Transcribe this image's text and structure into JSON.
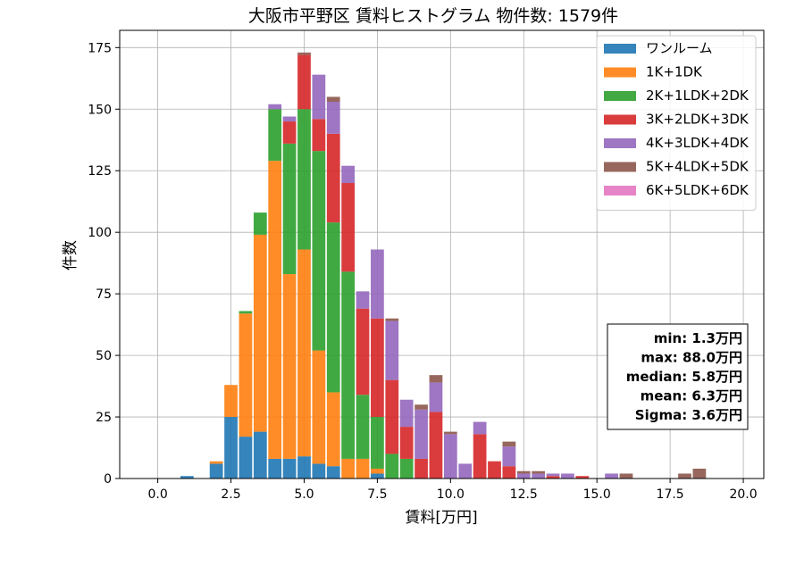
{
  "chart_data": {
    "type": "bar",
    "stacked": true,
    "title": "大阪市平野区 賃料ヒストグラム 物件数: 1579件",
    "xlabel": "賃料[万円]",
    "ylabel": "件数",
    "xlim": [
      -1.3,
      20.7
    ],
    "ylim": [
      0,
      182
    ],
    "bin_width": 0.5,
    "xticks": [
      0.0,
      2.5,
      5.0,
      7.5,
      10.0,
      12.5,
      15.0,
      17.5,
      20.0
    ],
    "xtick_labels": [
      "0.0",
      "2.5",
      "5.0",
      "7.5",
      "10.0",
      "12.5",
      "15.0",
      "17.5",
      "20.0"
    ],
    "yticks": [
      0,
      25,
      50,
      75,
      100,
      125,
      150,
      175
    ],
    "ytick_labels": [
      "0",
      "25",
      "50",
      "75",
      "100",
      "125",
      "150",
      "175"
    ],
    "grid": true,
    "legend_position": "top-right",
    "x": [
      1.0,
      2.0,
      2.5,
      3.0,
      3.5,
      4.0,
      4.5,
      5.0,
      5.5,
      6.0,
      6.5,
      7.0,
      7.5,
      8.0,
      8.5,
      9.0,
      9.5,
      10.0,
      10.5,
      11.0,
      11.5,
      12.0,
      12.5,
      13.0,
      13.5,
      14.0,
      14.5,
      15.5,
      16.0,
      18.0,
      18.5
    ],
    "series": [
      {
        "name": "ワンルーム",
        "color": "#1f77b4",
        "values": [
          1,
          6,
          25,
          17,
          19,
          8,
          8,
          9,
          6,
          5,
          0,
          0,
          2,
          0,
          0,
          0,
          0,
          0,
          0,
          0,
          0,
          0,
          0,
          0,
          0,
          0,
          0,
          0,
          0,
          0,
          0
        ]
      },
      {
        "name": "1K+1DK",
        "color": "#ff7f0e",
        "values": [
          0,
          1,
          13,
          50,
          80,
          121,
          75,
          84,
          46,
          30,
          8,
          8,
          2,
          0,
          0,
          0,
          0,
          0,
          0,
          0,
          0,
          0,
          0,
          0,
          0,
          0,
          0,
          0,
          0,
          0,
          0
        ]
      },
      {
        "name": "2K+1LDK+2DK",
        "color": "#2ca02c",
        "values": [
          0,
          0,
          0,
          1,
          9,
          21,
          53,
          57,
          81,
          69,
          76,
          26,
          21,
          10,
          8,
          0,
          0,
          0,
          0,
          0,
          0,
          0,
          0,
          0,
          0,
          0,
          0,
          0,
          0,
          0,
          0
        ]
      },
      {
        "name": "3K+2LDK+3DK",
        "color": "#d62728",
        "values": [
          0,
          0,
          0,
          0,
          0,
          0,
          9,
          22,
          13,
          36,
          36,
          35,
          40,
          30,
          13,
          8,
          27,
          0,
          0,
          18,
          7,
          5,
          0,
          0,
          1,
          0,
          1,
          0,
          0,
          0,
          0
        ]
      },
      {
        "name": "4K+3LDK+4DK",
        "color": "#9467bd",
        "values": [
          0,
          0,
          0,
          0,
          0,
          2,
          2,
          0,
          18,
          13,
          7,
          7,
          28,
          24,
          11,
          20,
          12,
          18,
          6,
          5,
          0,
          8,
          2,
          2,
          1,
          2,
          0,
          2,
          0,
          0,
          0
        ]
      },
      {
        "name": "5K+4LDK+5DK",
        "color": "#8c564b",
        "values": [
          0,
          0,
          0,
          0,
          0,
          0,
          0,
          1,
          0,
          2,
          0,
          0,
          0,
          1,
          0,
          2,
          3,
          1,
          0,
          0,
          0,
          2,
          1,
          1,
          0,
          0,
          0,
          0,
          2,
          2,
          4
        ]
      },
      {
        "name": "6K+5LDK+6DK",
        "color": "#e377c2",
        "values": [
          0,
          0,
          0,
          0,
          0,
          0,
          0,
          0,
          0,
          0,
          0,
          0,
          0,
          0,
          0,
          0,
          0,
          0,
          0,
          0,
          0,
          0,
          0,
          0,
          0,
          0,
          0,
          0,
          0,
          0,
          0
        ]
      }
    ],
    "stats_box": {
      "lines": [
        "min: 1.3万円",
        "max: 88.0万円",
        "median: 5.8万円",
        "mean: 6.3万円",
        "Sigma: 3.6万円"
      ]
    }
  }
}
